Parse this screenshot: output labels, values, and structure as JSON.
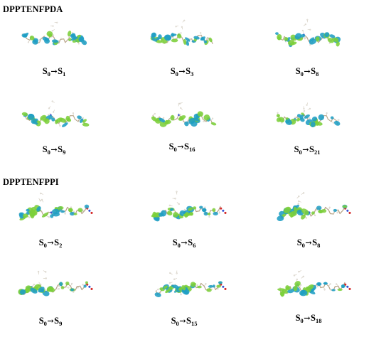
{
  "sections": [
    {
      "title": "DPPTENFPDA",
      "panels": [
        {
          "label": {
            "from": "S",
            "from_sub": "0",
            "arrow": "→",
            "to": "S",
            "to_sub": "1"
          }
        },
        {
          "label": {
            "from": "S",
            "from_sub": "0",
            "arrow": "→",
            "to": "S",
            "to_sub": "3"
          }
        },
        {
          "label": {
            "from": "S",
            "from_sub": "0",
            "arrow": "→",
            "to": "S",
            "to_sub": "8"
          }
        },
        {
          "label": {
            "from": "S",
            "from_sub": "0",
            "arrow": "→",
            "to": "S",
            "to_sub": "9"
          }
        },
        {
          "label": {
            "from": "S",
            "from_sub": "0",
            "arrow": "→",
            "to": "S",
            "to_sub": "16"
          }
        },
        {
          "label": {
            "from": "S",
            "from_sub": "0",
            "arrow": "→",
            "to": "S",
            "to_sub": "21"
          }
        }
      ]
    },
    {
      "title": "DPPTENFPPI",
      "panels": [
        {
          "label": {
            "from": "S",
            "from_sub": "0",
            "arrow": "→",
            "to": "S",
            "to_sub": "2"
          }
        },
        {
          "label": {
            "from": "S",
            "from_sub": "0",
            "arrow": "→",
            "to": "S",
            "to_sub": "6"
          }
        },
        {
          "label": {
            "from": "S",
            "from_sub": "0",
            "arrow": "→",
            "to": "S",
            "to_sub": "8"
          }
        },
        {
          "label": {
            "from": "S",
            "from_sub": "0",
            "arrow": "→",
            "to": "S",
            "to_sub": "9"
          }
        },
        {
          "label": {
            "from": "S",
            "from_sub": "0",
            "arrow": "→",
            "to": "S",
            "to_sub": "15"
          }
        },
        {
          "label": {
            "from": "S",
            "from_sub": "0",
            "arrow": "→",
            "to": "S",
            "to_sub": "18"
          }
        }
      ]
    }
  ],
  "colors": {
    "lobe_positive": "#1f9ec4",
    "lobe_negative": "#7ccf3a",
    "bond": "#b8a58a",
    "hydrogen": "#e6e2da",
    "nitrogen": "#3a55d6",
    "oxygen": "#d42a2a",
    "background": "#ffffff"
  }
}
